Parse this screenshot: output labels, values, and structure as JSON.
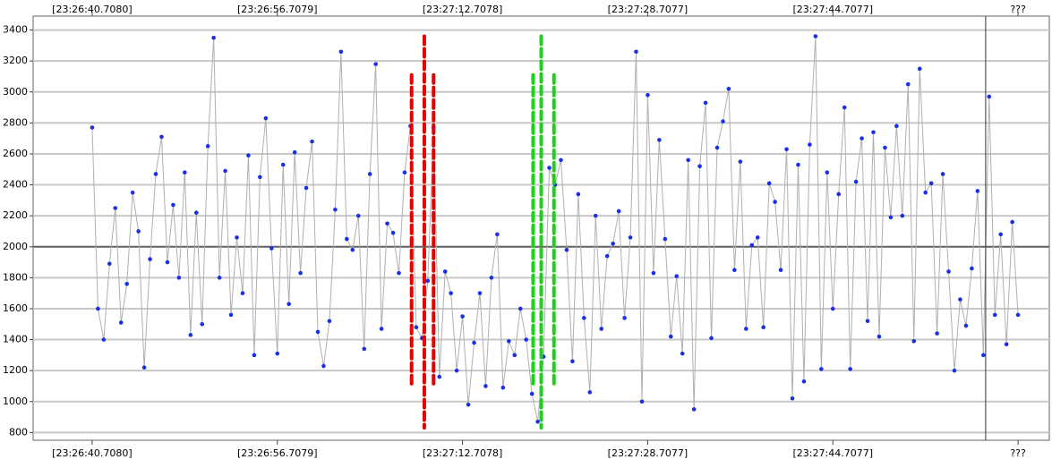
{
  "chart_data": {
    "type": "scatter",
    "series": [
      {
        "color": "#1a2fe8",
        "line_color": "#b0b0b0",
        "x": [
          0,
          0.5,
          1,
          1.5,
          2,
          2.5,
          3,
          3.5,
          4,
          4.5,
          5,
          5.5,
          6,
          6.5,
          7,
          7.5,
          8,
          8.5,
          9,
          9.5,
          10,
          10.5,
          11,
          11.5,
          12,
          12.5,
          13,
          13.5,
          14,
          14.5,
          15,
          15.5,
          16,
          16.5,
          17,
          17.5,
          18,
          18.5,
          19,
          19.5,
          20,
          20.5,
          21,
          21.5,
          22,
          22.5,
          23,
          23.5,
          24,
          24.5,
          25,
          25.5,
          26,
          26.5,
          27,
          27.5,
          28,
          28.5,
          29,
          29.5,
          30,
          30.5,
          31,
          31.5,
          32,
          32.5,
          33,
          33.5,
          34,
          34.5,
          35,
          35.5,
          36,
          36.5,
          37,
          37.5,
          38,
          38.5,
          39,
          39.5,
          40,
          40.5,
          41,
          41.5,
          42,
          42.5,
          43,
          43.5,
          44,
          44.5,
          45,
          45.5,
          46,
          46.5,
          47,
          47.5,
          48,
          48.5,
          49,
          49.5,
          50,
          50.5,
          51,
          51.5,
          52,
          52.5,
          53,
          53.5,
          54,
          54.5,
          55,
          55.5,
          56,
          56.5,
          57,
          57.5,
          58,
          58.5,
          59,
          59.5,
          60,
          60.5,
          61,
          61.5,
          62,
          62.5,
          63,
          63.5,
          64,
          64.5,
          65,
          65.5,
          66,
          66.5,
          67,
          67.5,
          68,
          68.5,
          69,
          69.5,
          70,
          70.5,
          71,
          71.5,
          72,
          72.5,
          73,
          73.5,
          74,
          74.5,
          75,
          75.5,
          76,
          76.5,
          77,
          77.5,
          78,
          78.5,
          79,
          79.5,
          80
        ],
        "values": [
          2770,
          1600,
          1400,
          1890,
          2250,
          1510,
          1760,
          2350,
          2100,
          1220,
          1920,
          2470,
          2710,
          1900,
          2270,
          1800,
          2480,
          1430,
          2220,
          1500,
          2650,
          3350,
          1800,
          2490,
          1560,
          2060,
          1700,
          2590,
          1300,
          2450,
          2830,
          1990,
          1310,
          2530,
          1630,
          2610,
          1830,
          2380,
          2680,
          1450,
          1230,
          1520,
          2240,
          3260,
          2050,
          1980,
          2200,
          1340,
          2470,
          3180,
          1470,
          2150,
          2090,
          1830,
          2480,
          2780,
          1480,
          1410,
          1780,
          2770,
          1160,
          1840,
          1700,
          1200,
          1550,
          980,
          1380,
          1700,
          1100,
          1800,
          2080,
          1090,
          1390,
          1300,
          1600,
          1400,
          1050,
          870,
          1290,
          2510,
          2400,
          2560,
          1980,
          1260,
          2340,
          1540,
          1060,
          2200,
          1470,
          1940,
          2020,
          2230,
          1540,
          2060,
          3260,
          1000,
          2980,
          1830,
          2690,
          2050,
          1420,
          1810,
          1310,
          2560,
          950,
          2520,
          2930,
          1410,
          2640,
          2810,
          3020,
          1850,
          2550,
          1470,
          2010,
          2060,
          1480,
          2410,
          2290,
          1850,
          2630,
          1020,
          2530,
          1130,
          2660,
          3360,
          1210,
          2480,
          1600,
          2340,
          2900,
          1210,
          2420,
          2700,
          1520,
          2740,
          1420,
          2640,
          2190,
          2780,
          2200,
          3050,
          1390,
          3150,
          2350,
          2410,
          1440,
          2470,
          1840,
          1200,
          1660,
          1490,
          1860,
          2360,
          1300,
          2970,
          1560,
          2080,
          1370,
          2160,
          1560
        ]
      }
    ],
    "xlim": [
      -5.1,
      82.7
    ],
    "xticks": [
      {
        "value": 0,
        "label": "[23:26:40.7080]"
      },
      {
        "value": 16,
        "label": "[23:26:56.7079]"
      },
      {
        "value": 32,
        "label": "[23:27:12.7078]"
      },
      {
        "value": 48,
        "label": "[23:27:28.7077]"
      },
      {
        "value": 64,
        "label": "[23:27:44.7077]"
      },
      {
        "value": 80,
        "label": "???"
      }
    ],
    "ylim": [
      750,
      3490
    ],
    "yticks": [
      800,
      1000,
      1200,
      1400,
      1600,
      1800,
      2000,
      2200,
      2400,
      2600,
      2800,
      3000,
      3200,
      3400
    ],
    "grid": true,
    "reference_line": 2000,
    "markers": [
      {
        "x": 27.6,
        "y": [
          1090,
          3110
        ],
        "color": "#e60000"
      },
      {
        "x": 28.7,
        "y": [
          830,
          3360
        ],
        "color": "#e60000"
      },
      {
        "x": 29.5,
        "y": [
          1090,
          3110
        ],
        "color": "#e60000"
      },
      {
        "x": 38.1,
        "y": [
          1090,
          3110
        ],
        "color": "#1ed01e"
      },
      {
        "x": 38.8,
        "y": [
          830,
          3360
        ],
        "color": "#1ed01e"
      },
      {
        "x": 39.9,
        "y": [
          1090,
          3110
        ],
        "color": "#1ed01e"
      }
    ],
    "cursor": 77.2
  }
}
